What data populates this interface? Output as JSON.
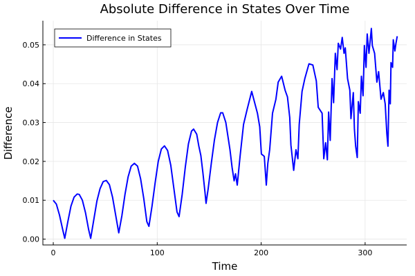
{
  "chart_data": {
    "type": "line",
    "title": "Absolute Difference in States Over Time",
    "xlabel": "Time",
    "ylabel": "Difference",
    "xlim": [
      -10,
      340
    ],
    "ylim": [
      -0.0015,
      0.0562
    ],
    "xticks": [
      0,
      100,
      200,
      300
    ],
    "xtick_labels": [
      "0",
      "100",
      "200",
      "300"
    ],
    "yticks": [
      0,
      0.01,
      0.02,
      0.03,
      0.04,
      0.05
    ],
    "ytick_labels": [
      "0.00",
      "0.01",
      "0.02",
      "0.03",
      "0.04",
      "0.05"
    ],
    "grid": true,
    "legend_position": "top-left",
    "series": [
      {
        "name": "Difference in States",
        "color": "#0000ff",
        "points": [
          [
            0,
            0.01
          ],
          [
            3,
            0.009
          ],
          [
            6,
            0.0062
          ],
          [
            9,
            0.0025
          ],
          [
            11,
            0.0002
          ],
          [
            14,
            0.0045
          ],
          [
            17,
            0.0085
          ],
          [
            20,
            0.0108
          ],
          [
            23,
            0.0116
          ],
          [
            25,
            0.0115
          ],
          [
            28,
            0.01
          ],
          [
            31,
            0.0068
          ],
          [
            34,
            0.0025
          ],
          [
            36,
            0.0002
          ],
          [
            39,
            0.005
          ],
          [
            42,
            0.0098
          ],
          [
            45,
            0.013
          ],
          [
            48,
            0.0148
          ],
          [
            51,
            0.0151
          ],
          [
            54,
            0.014
          ],
          [
            57,
            0.0108
          ],
          [
            60,
            0.0062
          ],
          [
            63,
            0.0016
          ],
          [
            66,
            0.006
          ],
          [
            69,
            0.0115
          ],
          [
            72,
            0.016
          ],
          [
            75,
            0.0188
          ],
          [
            78,
            0.0195
          ],
          [
            81,
            0.0188
          ],
          [
            84,
            0.0155
          ],
          [
            87,
            0.0105
          ],
          [
            90,
            0.0045
          ],
          [
            92,
            0.0033
          ],
          [
            95,
            0.0085
          ],
          [
            98,
            0.0145
          ],
          [
            101,
            0.02
          ],
          [
            104,
            0.0232
          ],
          [
            107,
            0.024
          ],
          [
            110,
            0.0228
          ],
          [
            113,
            0.019
          ],
          [
            116,
            0.013
          ],
          [
            119,
            0.007
          ],
          [
            121,
            0.0058
          ],
          [
            124,
            0.0115
          ],
          [
            127,
            0.0185
          ],
          [
            130,
            0.0245
          ],
          [
            133,
            0.0278
          ],
          [
            135,
            0.0283
          ],
          [
            138,
            0.027
          ],
          [
            140,
            0.024
          ],
          [
            142,
            0.0215
          ],
          [
            144,
            0.017
          ],
          [
            146,
            0.012
          ],
          [
            147,
            0.0092
          ],
          [
            149,
            0.013
          ],
          [
            152,
            0.0195
          ],
          [
            155,
            0.0255
          ],
          [
            158,
            0.03
          ],
          [
            161,
            0.0325
          ],
          [
            163,
            0.0325
          ],
          [
            166,
            0.03
          ],
          [
            168,
            0.0265
          ],
          [
            170,
            0.023
          ],
          [
            172,
            0.0185
          ],
          [
            174,
            0.015
          ],
          [
            175.3,
            0.0168
          ],
          [
            177,
            0.0139
          ],
          [
            179.7,
            0.0213
          ],
          [
            183,
            0.0295
          ],
          [
            186.4,
            0.0333
          ],
          [
            190.9,
            0.038
          ],
          [
            196.4,
            0.0324
          ],
          [
            198.6,
            0.0289
          ],
          [
            200.2,
            0.0219
          ],
          [
            203,
            0.0213
          ],
          [
            204.9,
            0.0139
          ],
          [
            206.4,
            0.0195
          ],
          [
            208.2,
            0.023
          ],
          [
            210.9,
            0.0324
          ],
          [
            214.2,
            0.036
          ],
          [
            216.4,
            0.0404
          ],
          [
            219.7,
            0.0419
          ],
          [
            223,
            0.0383
          ],
          [
            225.3,
            0.0366
          ],
          [
            227.5,
            0.0313
          ],
          [
            228.6,
            0.0242
          ],
          [
            231.3,
            0.0177
          ],
          [
            233.5,
            0.023
          ],
          [
            235.3,
            0.0207
          ],
          [
            236.6,
            0.0295
          ],
          [
            239.3,
            0.038
          ],
          [
            242,
            0.0413
          ],
          [
            246,
            0.0451
          ],
          [
            249.7,
            0.0448
          ],
          [
            253,
            0.0407
          ],
          [
            254.9,
            0.0339
          ],
          [
            258.6,
            0.0324
          ],
          [
            260.2,
            0.0207
          ],
          [
            262,
            0.0248
          ],
          [
            263.7,
            0.0204
          ],
          [
            264.9,
            0.0327
          ],
          [
            266.4,
            0.0254
          ],
          [
            268.2,
            0.0413
          ],
          [
            269.7,
            0.0351
          ],
          [
            271.3,
            0.0478
          ],
          [
            273,
            0.0436
          ],
          [
            274.2,
            0.0504
          ],
          [
            276.4,
            0.0489
          ],
          [
            278,
            0.0519
          ],
          [
            279.7,
            0.0478
          ],
          [
            280.9,
            0.0492
          ],
          [
            283.1,
            0.0413
          ],
          [
            285.3,
            0.0383
          ],
          [
            286.4,
            0.031
          ],
          [
            288.6,
            0.0377
          ],
          [
            289.7,
            0.0283
          ],
          [
            290.9,
            0.0239
          ],
          [
            292.4,
            0.021
          ],
          [
            293.5,
            0.0354
          ],
          [
            295.3,
            0.0324
          ],
          [
            296.4,
            0.0419
          ],
          [
            298,
            0.0369
          ],
          [
            299.3,
            0.0498
          ],
          [
            300.9,
            0.0442
          ],
          [
            302,
            0.0528
          ],
          [
            303.7,
            0.0478
          ],
          [
            306,
            0.0542
          ],
          [
            306.9,
            0.0498
          ],
          [
            309.1,
            0.0478
          ],
          [
            311.3,
            0.0404
          ],
          [
            313,
            0.0431
          ],
          [
            315.3,
            0.036
          ],
          [
            317.5,
            0.0377
          ],
          [
            319.3,
            0.0348
          ],
          [
            320.9,
            0.0271
          ],
          [
            322,
            0.0239
          ],
          [
            323,
            0.0383
          ],
          [
            324.2,
            0.0348
          ],
          [
            324.9,
            0.0454
          ],
          [
            326.4,
            0.0442
          ],
          [
            327.1,
            0.0513
          ],
          [
            328.6,
            0.0484
          ],
          [
            329.7,
            0.0504
          ],
          [
            330.9,
            0.0522
          ]
        ]
      }
    ]
  }
}
